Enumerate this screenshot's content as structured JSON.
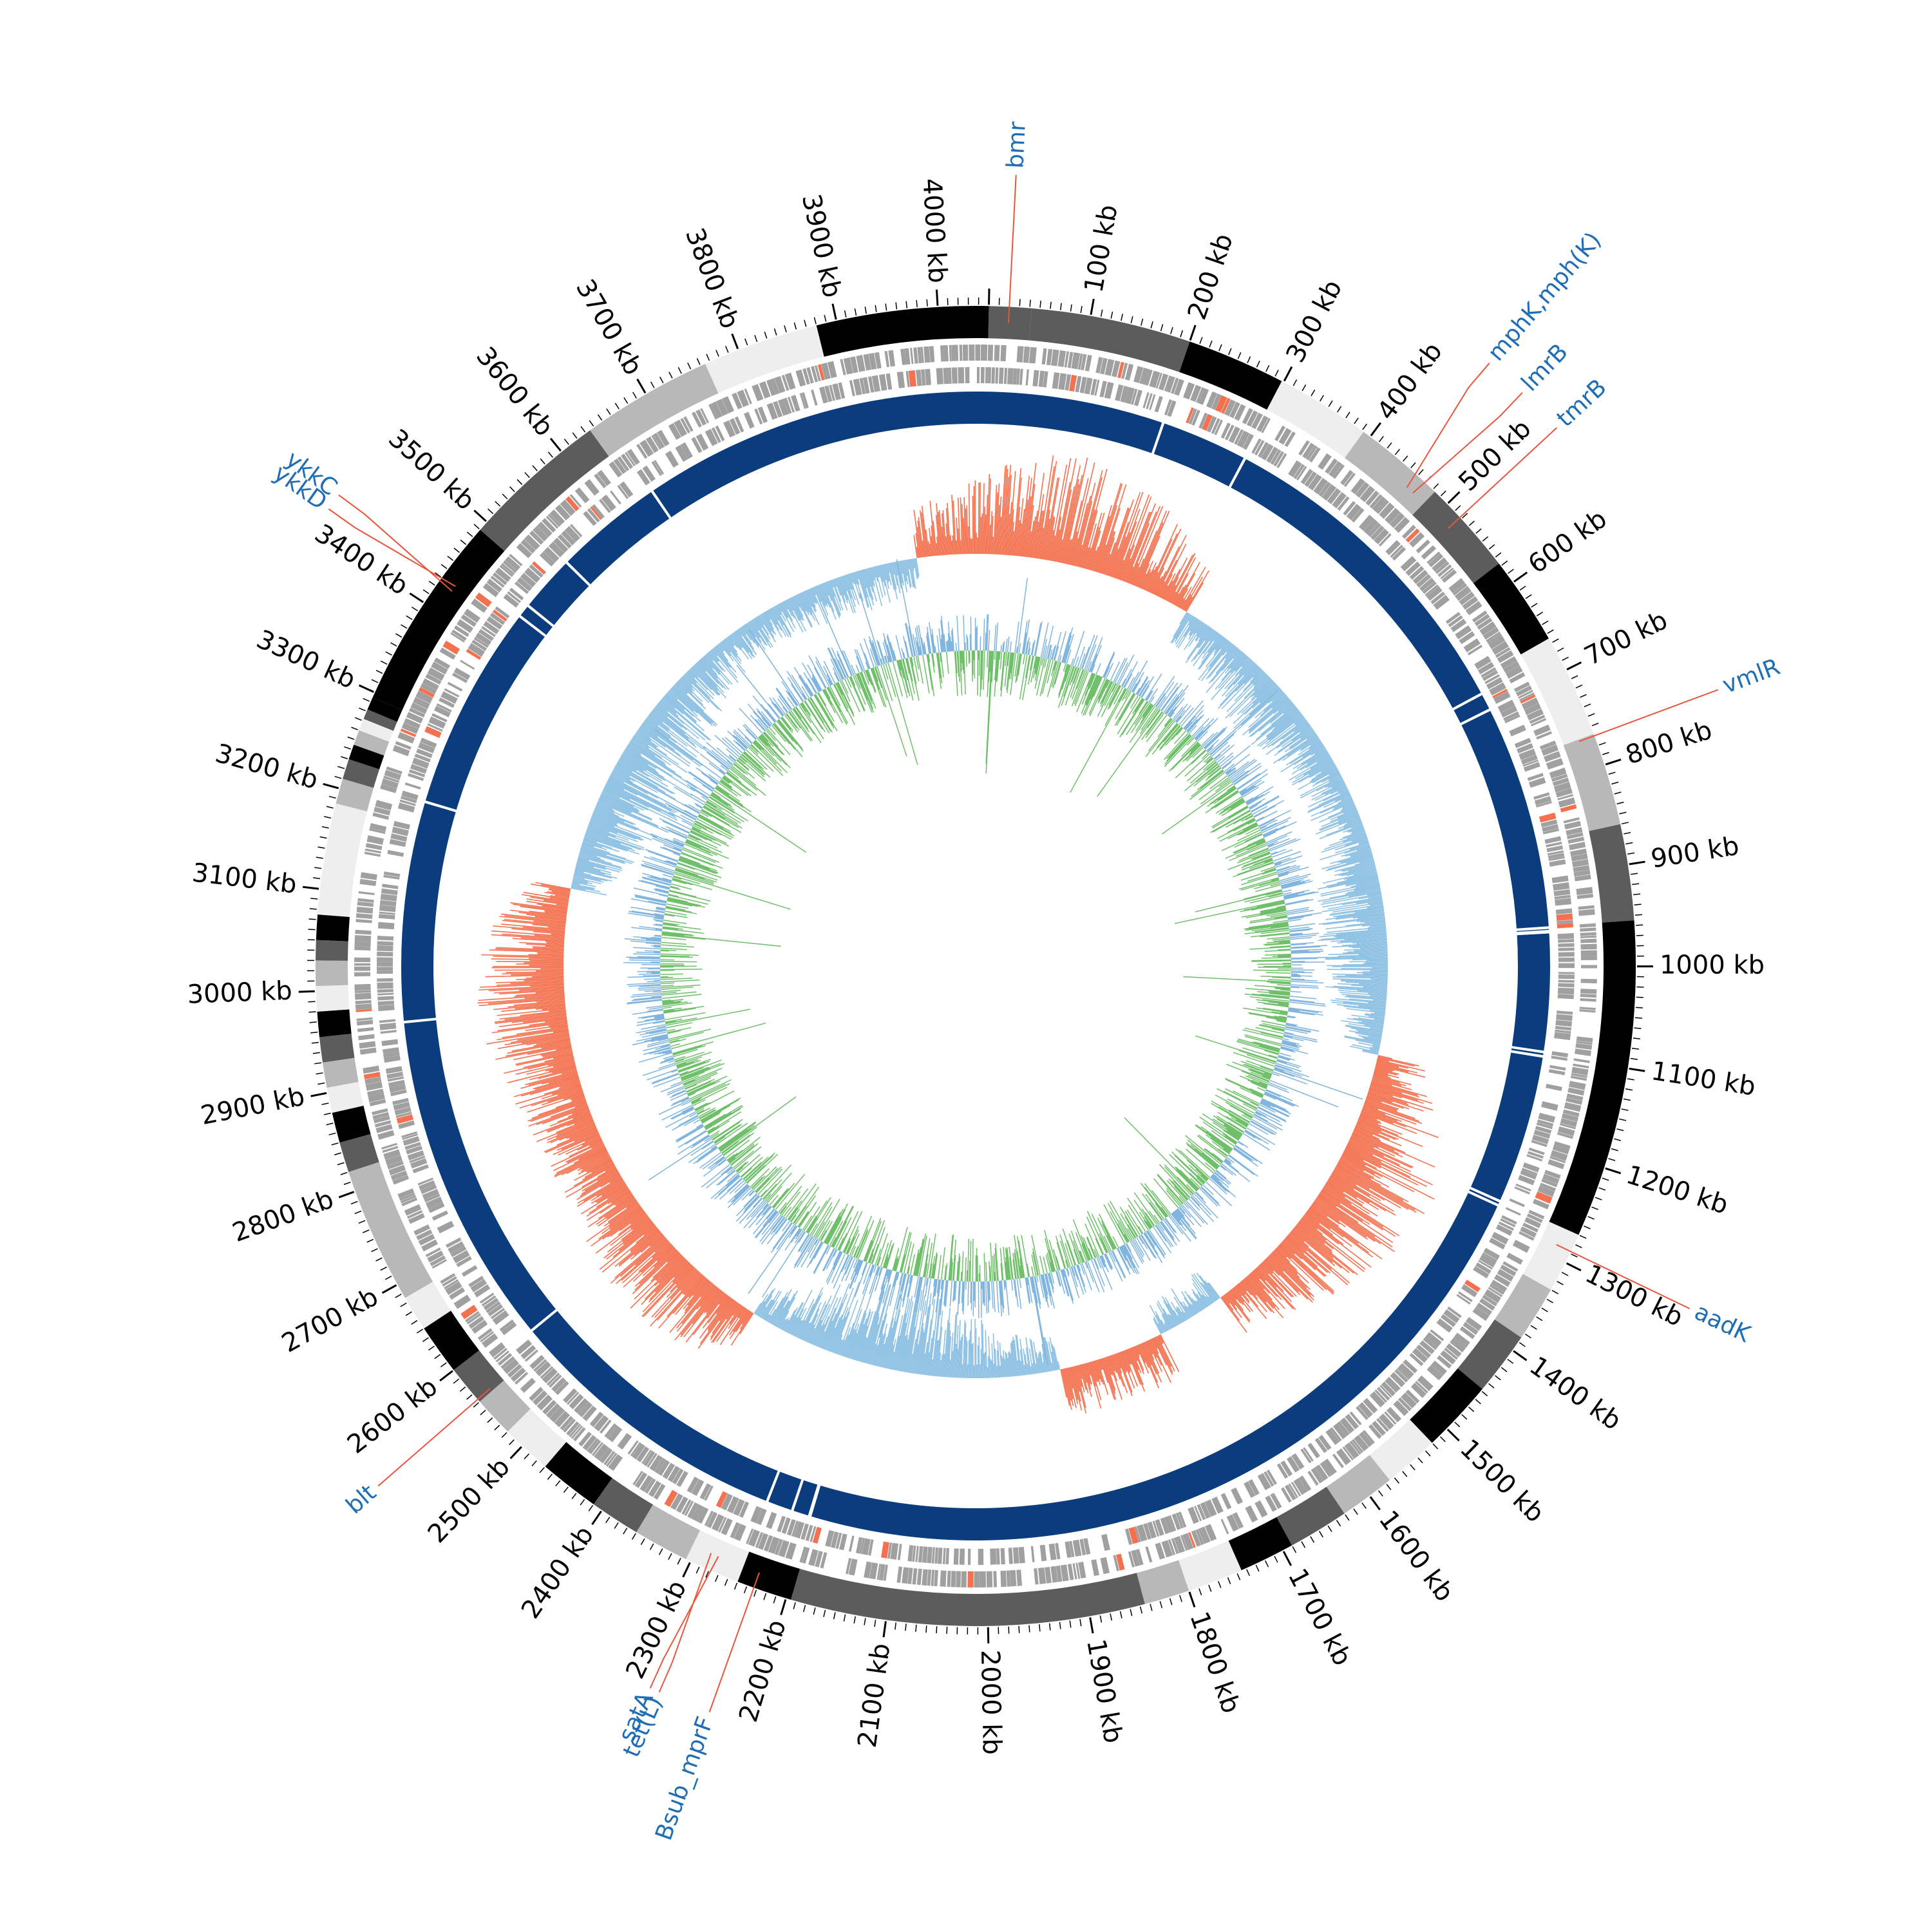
{
  "genome": {
    "length_kb": 4050,
    "scale_labels": [
      "100 kb",
      "200 kb",
      "300 kb",
      "400 kb",
      "500 kb",
      "600 kb",
      "700 kb",
      "800 kb",
      "900 kb",
      "1000 kb",
      "1100 kb",
      "1200 kb",
      "1300 kb",
      "1400 kb",
      "1500 kb",
      "1600 kb",
      "1700 kb",
      "1800 kb",
      "1900 kb",
      "2000 kb",
      "2100 kb",
      "2200 kb",
      "2300 kb",
      "2400 kb",
      "2500 kb",
      "2600 kb",
      "2700 kb",
      "2800 kb",
      "2900 kb",
      "3000 kb",
      "3100 kb",
      "3200 kb",
      "3300 kb",
      "3400 kb",
      "3500 kb",
      "3600 kb",
      "3700 kb",
      "3800 kb",
      "3900 kb",
      "4000 kb"
    ]
  },
  "colors": {
    "label_text": "#000000",
    "gene_label": "#1f6db5",
    "leader_line": "#e8553d",
    "orf_track": "#a0a0a0",
    "backbone": "#0b3d7e",
    "gc_positive": "#f4714f",
    "gc_negative": "#8ec1e3",
    "skew_positive": "#6fbf6a",
    "skew_negative": "#7fb4de",
    "contig_shades": [
      "#000000",
      "#5c5c5c",
      "#b8b8b8",
      "#eeeeee"
    ]
  },
  "contigs_kb": [
    [
      0,
      42,
      1
    ],
    [
      42,
      200,
      1
    ],
    [
      200,
      298,
      0
    ],
    [
      298,
      392,
      3
    ],
    [
      392,
      483,
      2
    ],
    [
      483,
      577,
      1
    ],
    [
      577,
      665,
      0
    ],
    [
      665,
      768,
      3
    ],
    [
      768,
      860,
      2
    ],
    [
      860,
      955,
      1
    ],
    [
      955,
      1270,
      0
    ],
    [
      1270,
      1330,
      3
    ],
    [
      1330,
      1385,
      2
    ],
    [
      1385,
      1448,
      1
    ],
    [
      1448,
      1520,
      0
    ],
    [
      1520,
      1575,
      3
    ],
    [
      1575,
      1630,
      2
    ],
    [
      1630,
      1690,
      1
    ],
    [
      1690,
      1745,
      0
    ],
    [
      1745,
      1800,
      3
    ],
    [
      1800,
      1845,
      2
    ],
    [
      1845,
      2195,
      1
    ],
    [
      2195,
      2250,
      0
    ],
    [
      2250,
      2305,
      3
    ],
    [
      2305,
      2360,
      2
    ],
    [
      2360,
      2410,
      1
    ],
    [
      2410,
      2470,
      0
    ],
    [
      2470,
      2520,
      3
    ],
    [
      2520,
      2560,
      2
    ],
    [
      2560,
      2600,
      1
    ],
    [
      2600,
      2650,
      0
    ],
    [
      2650,
      2685,
      3
    ],
    [
      2685,
      2820,
      2
    ],
    [
      2820,
      2850,
      1
    ],
    [
      2850,
      2880,
      0
    ],
    [
      2880,
      2905,
      3
    ],
    [
      2905,
      2930,
      2
    ],
    [
      2930,
      2955,
      1
    ],
    [
      2955,
      2980,
      0
    ],
    [
      2980,
      3005,
      3
    ],
    [
      3005,
      3030,
      2
    ],
    [
      3030,
      3050,
      1
    ],
    [
      3050,
      3075,
      0
    ],
    [
      3075,
      3185,
      3
    ],
    [
      3185,
      3210,
      2
    ],
    [
      3210,
      3230,
      1
    ],
    [
      3230,
      3245,
      0
    ],
    [
      3245,
      3260,
      2
    ],
    [
      3260,
      3272,
      3
    ],
    [
      3272,
      3282,
      1
    ],
    [
      3282,
      3295,
      0
    ],
    [
      3295,
      3490,
      0
    ],
    [
      3490,
      3635,
      1
    ],
    [
      3635,
      3765,
      2
    ],
    [
      3765,
      3880,
      3
    ],
    [
      3880,
      4050,
      0
    ]
  ],
  "annotations": [
    {
      "label": "bmr",
      "position_kb": 20
    },
    {
      "label": "mphK,mph(K)",
      "position_kb": 460
    },
    {
      "label": "lmrB",
      "position_kb": 468
    },
    {
      "label": "tmrB",
      "position_kb": 518
    },
    {
      "label": "vmlR",
      "position_kb": 770
    },
    {
      "label": "aadK",
      "position_kb": 1288
    },
    {
      "label": "Bsub_mprF",
      "position_kb": 2233
    },
    {
      "label": "satA",
      "position_kb": 2277
    },
    {
      "label": "tet(L)",
      "position_kb": 2285
    },
    {
      "label": "blt",
      "position_kb": 2563
    },
    {
      "label": "ykkC",
      "position_kb": 3425
    },
    {
      "label": "ykkD",
      "position_kb": 3431
    }
  ],
  "backbone_gaps_kb": [
    200,
    300,
    680,
    700,
    955,
    960,
    1095,
    1100,
    1270,
    1275,
    2220,
    2250,
    2580,
    3210,
    2960,
    3445,
    3460,
    3525,
    3650
  ]
}
